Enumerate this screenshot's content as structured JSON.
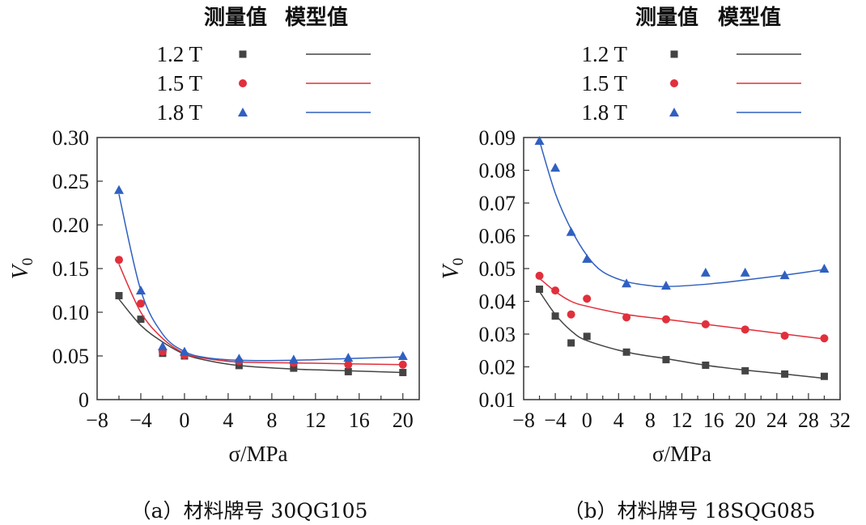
{
  "legend_header": {
    "measured": "测量值",
    "model": "模型值"
  },
  "colors": {
    "1.2 T": "#444444",
    "1.5 T": "#e0303c",
    "1.8 T": "#3060c0",
    "axis": "#333333"
  },
  "chart_data": [
    {
      "type": "scatter",
      "caption": "（a）材料牌号 30QG105",
      "xlabel": "σ/MPa",
      "ylabel": "V0",
      "xlim": [
        -8,
        21.5
      ],
      "ylim": [
        0,
        0.3
      ],
      "xticks": [
        "−8",
        "−4",
        "0",
        "4",
        "8",
        "12",
        "16",
        "20"
      ],
      "yticks": [
        "0",
        "0.05",
        "0.10",
        "0.15",
        "0.20",
        "0.25",
        "0.30"
      ],
      "grid": false,
      "legend_placement": "top",
      "series": [
        {
          "name": "1.2 T",
          "marker": "square",
          "x": [
            -6,
            -4,
            -2,
            0,
            5,
            10,
            15,
            20
          ],
          "measured": [
            0.119,
            0.092,
            0.053,
            0.05,
            0.039,
            0.036,
            0.032,
            0.031
          ],
          "model_x": [
            -6,
            -4,
            -2,
            0,
            2,
            5,
            10,
            15,
            20
          ],
          "model": [
            0.115,
            0.085,
            0.066,
            0.052,
            0.045,
            0.039,
            0.035,
            0.033,
            0.031
          ]
        },
        {
          "name": "1.5 T",
          "marker": "circle",
          "x": [
            -6,
            -4,
            -2,
            0,
            5,
            10,
            15,
            20
          ],
          "measured": [
            0.16,
            0.11,
            0.055,
            0.051,
            0.044,
            0.042,
            0.04,
            0.04
          ],
          "model_x": [
            -6,
            -4,
            -2,
            0,
            2,
            5,
            10,
            15,
            20
          ],
          "model": [
            0.155,
            0.1,
            0.07,
            0.053,
            0.047,
            0.043,
            0.042,
            0.041,
            0.04
          ]
        },
        {
          "name": "1.8 T",
          "marker": "triangle",
          "x": [
            -6,
            -4,
            -2,
            0,
            5,
            10,
            15,
            20
          ],
          "measured": [
            0.24,
            0.125,
            0.061,
            0.055,
            0.047,
            0.046,
            0.048,
            0.05
          ],
          "model_x": [
            -6,
            -4,
            -2,
            0,
            2,
            5,
            10,
            15,
            20
          ],
          "model": [
            0.235,
            0.125,
            0.075,
            0.055,
            0.048,
            0.045,
            0.045,
            0.047,
            0.049
          ]
        }
      ]
    },
    {
      "type": "scatter",
      "caption": "（b）材料牌号 18SQG085",
      "xlabel": "σ/MPa",
      "ylabel": "V0",
      "xlim": [
        -8,
        32
      ],
      "ylim": [
        0.01,
        0.09
      ],
      "xticks": [
        "−8",
        "−4",
        "0",
        "4",
        "8",
        "12",
        "16",
        "20",
        "24",
        "28",
        "32"
      ],
      "yticks": [
        "0.01",
        "0.02",
        "0.03",
        "0.04",
        "0.05",
        "0.06",
        "0.07",
        "0.08",
        "0.09"
      ],
      "grid": false,
      "legend_placement": "top",
      "series": [
        {
          "name": "1.2 T",
          "marker": "square",
          "x": [
            -6,
            -4,
            -2,
            0,
            5,
            10,
            15,
            20,
            25,
            30
          ],
          "measured": [
            0.0437,
            0.0355,
            0.0273,
            0.0293,
            0.0245,
            0.0222,
            0.0205,
            0.0188,
            0.0178,
            0.0171
          ],
          "model_x": [
            -6,
            -4,
            -2,
            0,
            5,
            10,
            15,
            20,
            25,
            30
          ],
          "model": [
            0.043,
            0.036,
            0.031,
            0.028,
            0.0245,
            0.0225,
            0.0205,
            0.019,
            0.0178,
            0.0165
          ]
        },
        {
          "name": "1.5 T",
          "marker": "circle",
          "x": [
            -6,
            -4,
            -2,
            0,
            5,
            10,
            15,
            20,
            25,
            30
          ],
          "measured": [
            0.0478,
            0.0433,
            0.036,
            0.0408,
            0.0351,
            0.0345,
            0.033,
            0.0314,
            0.0295,
            0.0287
          ],
          "model_x": [
            -6,
            -4,
            -2,
            0,
            5,
            10,
            15,
            20,
            25,
            30
          ],
          "model": [
            0.047,
            0.043,
            0.04,
            0.0385,
            0.036,
            0.0345,
            0.033,
            0.0315,
            0.03,
            0.0285
          ]
        },
        {
          "name": "1.8 T",
          "marker": "triangle",
          "x": [
            -6,
            -4,
            -2,
            0,
            5,
            10,
            15,
            20,
            25,
            30
          ],
          "measured": [
            0.089,
            0.0808,
            0.0612,
            0.053,
            0.0455,
            0.0448,
            0.0488,
            0.0488,
            0.048,
            0.05
          ],
          "model_x": [
            -6,
            -4,
            -2,
            0,
            2,
            5,
            8,
            10,
            15,
            20,
            25,
            30
          ],
          "model": [
            0.089,
            0.073,
            0.062,
            0.054,
            0.049,
            0.046,
            0.0448,
            0.0445,
            0.0452,
            0.0465,
            0.048,
            0.0497
          ]
        }
      ]
    }
  ]
}
